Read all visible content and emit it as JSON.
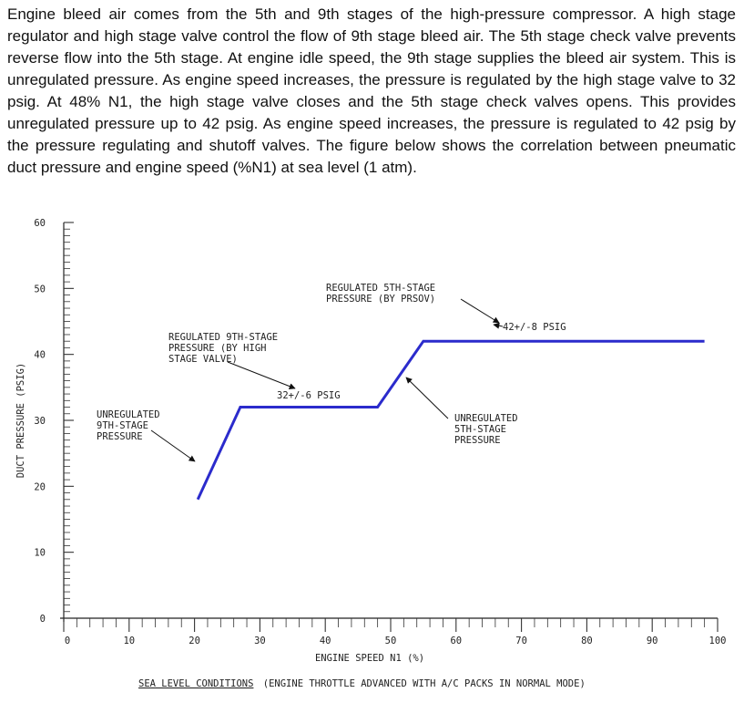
{
  "intro_text": "Engine bleed air comes from the 5th and 9th stages of the high-pressure compressor.  A high stage regulator and high stage valve control the flow of 9th stage bleed air. The 5th stage check valve prevents reverse flow into the 5th stage. At engine idle speed, the 9th stage supplies the bleed air system. This is unregulated pressure. As engine speed increases, the pressure is regulated by the high stage valve to 32 psig. At 48% N1, the high stage valve closes and the 5th stage check valves opens. This provides unregulated pressure up to 42 psig. As engine speed increases, the pressure is regulated to 42 psig by the pressure regulating and shutoff valves. The figure below shows the correlation between pneumatic duct pressure and engine speed (%N1) at sea level (1 atm).",
  "chart_data": {
    "type": "line",
    "title": "",
    "xlabel": "ENGINE SPEED N1 (%)",
    "ylabel": "DUCT PRESSURE (PSIG)",
    "xlim": [
      0,
      100
    ],
    "ylim": [
      0,
      60
    ],
    "xticks": [
      "0",
      "10",
      "20",
      "30",
      "40",
      "50",
      "60",
      "70",
      "80",
      "90",
      "100"
    ],
    "yticks": [
      "0",
      "10",
      "20",
      "30",
      "40",
      "50",
      "60"
    ],
    "series": [
      {
        "color": "#2b2bcc",
        "x": [
          20.5,
          27,
          48,
          55,
          98
        ],
        "y": [
          18,
          32,
          32,
          42,
          42
        ]
      }
    ],
    "annotations": [
      {
        "lines": [
          "UNREGULATED",
          "9TH-STAGE",
          "PRESSURE"
        ]
      },
      {
        "lines": [
          "REGULATED 9TH-STAGE",
          "PRESSURE (BY HIGH",
          "STAGE VALVE)"
        ]
      },
      {
        "lines": [
          "32+/-6 PSIG"
        ]
      },
      {
        "lines": [
          "REGULATED 5TH-STAGE",
          "PRESSURE (BY PRSOV)"
        ]
      },
      {
        "lines": [
          "42+/-8 PSIG"
        ]
      },
      {
        "lines": [
          "UNREGULATED",
          "5TH-STAGE",
          "PRESSURE"
        ]
      }
    ],
    "footer_underlined": "SEA LEVEL CONDITIONS",
    "footer_rest": "(ENGINE THROTTLE ADVANCED WITH A/C PACKS IN NORMAL MODE)",
    "grid": false
  }
}
